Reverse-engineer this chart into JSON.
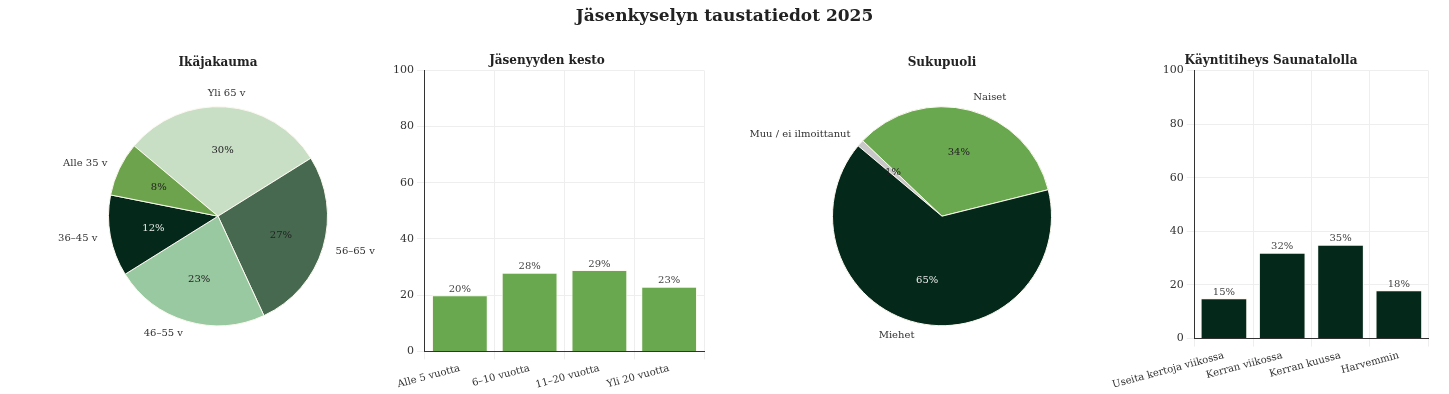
{
  "chart_data": [
    {
      "type": "pie",
      "title": "Ikäjakauma",
      "annotations": [
        "Jäsenkyselyn taustatiedot 2025"
      ],
      "categories": [
        "Yli 65 v",
        "56–65 v",
        "46–55 v",
        "36–45 v",
        "Alle 35 v"
      ],
      "values": [
        30,
        27,
        23,
        12,
        8
      ],
      "colors": [
        "#c8dfc5",
        "#47694f",
        "#99c9a0",
        "#04291a",
        "#6da34d"
      ],
      "value_labels": [
        "30%",
        "27%",
        "23%",
        "12%",
        "8%"
      ],
      "legend": false
    },
    {
      "type": "bar",
      "title": "Jäsenyyden kesto",
      "categories": [
        "Alle 5 vuotta",
        "6–10 vuotta",
        "11–20 vuotta",
        "Yli 20 vuotta"
      ],
      "values": [
        20,
        28,
        29,
        23
      ],
      "color": "#6aa84f",
      "value_labels": [
        "20%",
        "28%",
        "29%",
        "23%"
      ],
      "ylim": [
        0,
        100
      ],
      "yticks": [
        0,
        20,
        40,
        60,
        80,
        100
      ],
      "grid": true,
      "legend": false
    },
    {
      "type": "pie",
      "title": "Sukupuoli",
      "categories": [
        "Muu / ei ilmoittanut",
        "Naiset",
        "Miehet"
      ],
      "values": [
        1,
        34,
        65
      ],
      "colors": [
        "#c8c8c8",
        "#6aa84f",
        "#04291a"
      ],
      "value_labels": [
        "1%",
        "34%",
        "65%"
      ],
      "legend": false
    },
    {
      "type": "bar",
      "title": "Käyntitiheys Saunatalolla",
      "categories": [
        "Useita kertoja viikossa",
        "Kerran viikossa",
        "Kerran kuussa",
        "Harvemmin"
      ],
      "values": [
        15,
        32,
        35,
        18
      ],
      "color": "#04291a",
      "value_labels": [
        "15%",
        "32%",
        "35%",
        "18%"
      ],
      "ylim": [
        0,
        100
      ],
      "yticks": [
        0,
        20,
        40,
        60,
        80,
        100
      ],
      "grid": true,
      "legend": false
    }
  ]
}
